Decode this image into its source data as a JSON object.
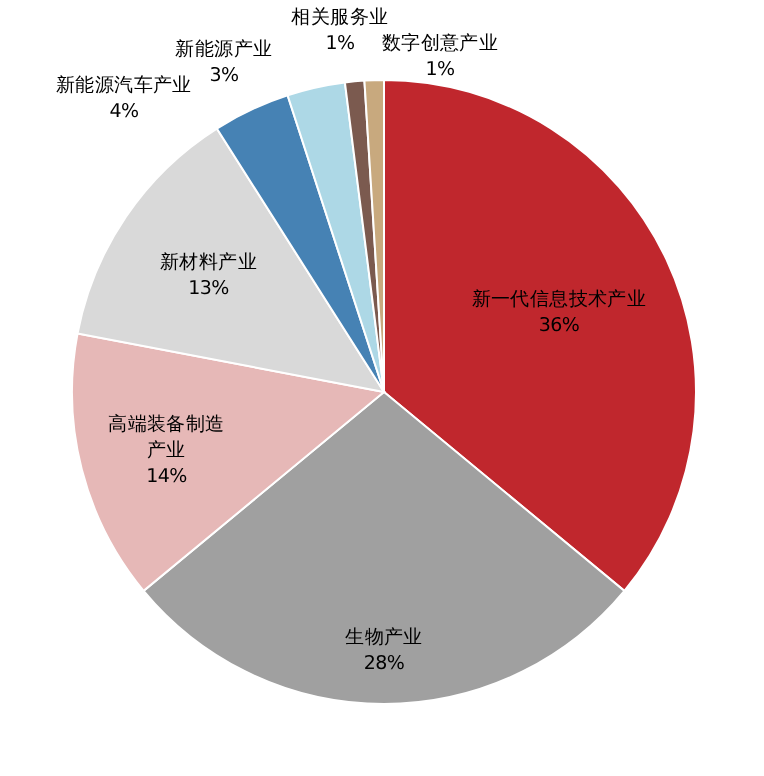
{
  "chart_data": {
    "type": "pie",
    "categories": [
      "新一代信息技术产业",
      "生物产业",
      "高端装备制造产业",
      "新材料产业",
      "新能源汽车产业",
      "新能源产业",
      "相关服务业",
      "数字创意产业"
    ],
    "values": [
      36,
      28,
      14,
      13,
      4,
      3,
      1,
      1
    ],
    "colors": [
      "#c0272d",
      "#a0a0a0",
      "#e6b8b7",
      "#d9d9d9",
      "#4682b4",
      "#add8e6",
      "#7b5a4f",
      "#c8a97e"
    ],
    "value_labels": [
      "36%",
      "28%",
      "14%",
      "13%",
      "4%",
      "3%",
      "1%",
      "1%"
    ]
  }
}
